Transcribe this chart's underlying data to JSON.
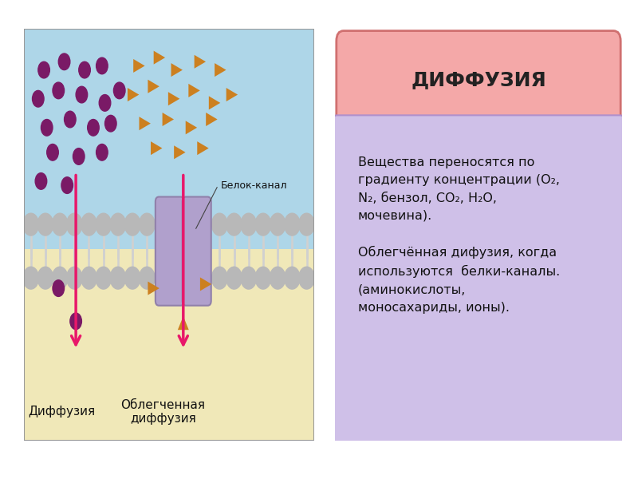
{
  "title_box": {
    "text": "ДИФФУЗИЯ",
    "bg_color": "#f4a8a8",
    "border_color": "#d07070",
    "text_color": "#222222",
    "fontsize": 18
  },
  "info_box": {
    "bg_color": "#cfc0e8",
    "border_color": "#b090cc",
    "text_color": "#111111",
    "fontsize": 11.5
  },
  "diagram": {
    "bg_top": "#aed6e8",
    "bg_bottom": "#f0e8b8",
    "border_color": "#999999",
    "membrane_head_color": "#b8b8b8",
    "membrane_tail_color": "#d0d0d0",
    "protein_color": "#b0a0cc",
    "protein_edge_color": "#9080aa",
    "arrow_color": "#e8186a",
    "purple_dot_color": "#7a1a66",
    "orange_tri_color": "#cc8020",
    "label_color": "#111111",
    "label_diffusion": "Диффузия",
    "label_facilitated": "Облегченная\nдиффузия",
    "label_protein": "Белок-канал"
  },
  "fig_bg": "#ffffff",
  "info_text_line1": "Вещества переносятся по",
  "info_text_line2": "градиенту концентрации (О",
  "info_text_line3": ", бензол, СО",
  "info_text_line4": ", Н",
  "info_text_line5": "О,",
  "info_text_line6": "мочевина).",
  "info_text_line7": "Облегчённая дифузия, когда",
  "info_text_line8": "используются  белки-каналы.",
  "info_text_line9": "(аминокислоты,",
  "info_text_line10": "моносахариды, ионы)."
}
